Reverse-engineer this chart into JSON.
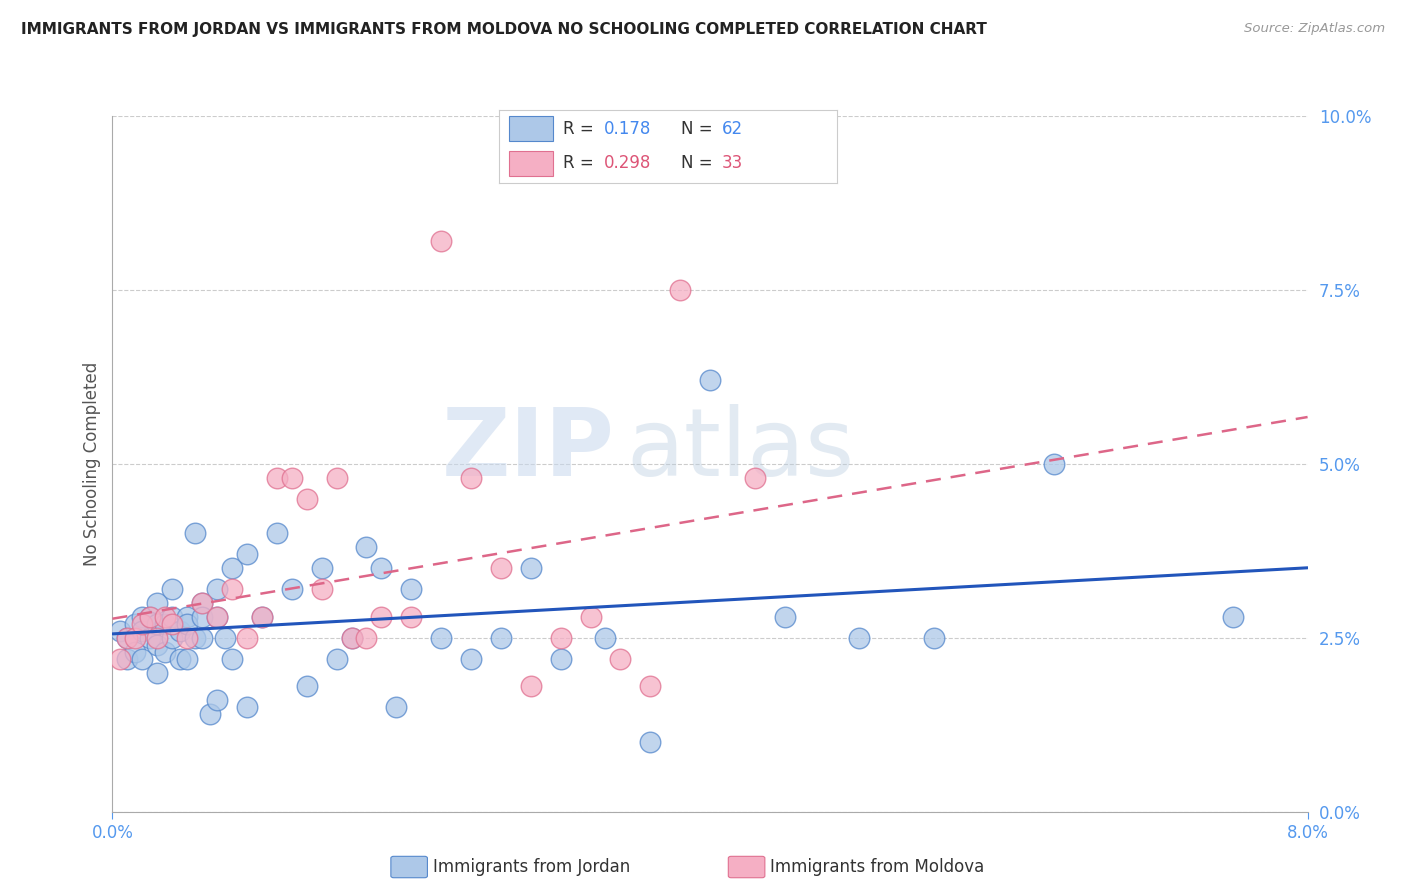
{
  "title": "IMMIGRANTS FROM JORDAN VS IMMIGRANTS FROM MOLDOVA NO SCHOOLING COMPLETED CORRELATION CHART",
  "source": "Source: ZipAtlas.com",
  "ylabel": "No Schooling Completed",
  "xlim": [
    0.0,
    0.08
  ],
  "ylim": [
    0.0,
    0.1
  ],
  "xticks_show": [
    0.0,
    0.08
  ],
  "yticks": [
    0.0,
    0.025,
    0.05,
    0.075,
    0.1
  ],
  "jordan_color": "#adc8e8",
  "moldova_color": "#f5afc4",
  "jordan_edge_color": "#5588cc",
  "moldova_edge_color": "#e07090",
  "trend_jordan_color": "#2255bb",
  "trend_moldova_color": "#dd6688",
  "R_jordan": 0.178,
  "N_jordan": 62,
  "R_moldova": 0.298,
  "N_moldova": 33,
  "watermark_zip": "ZIP",
  "watermark_atlas": "atlas",
  "background_color": "#ffffff",
  "jordan_x": [
    0.0005,
    0.001,
    0.001,
    0.0015,
    0.0015,
    0.002,
    0.002,
    0.002,
    0.0025,
    0.0025,
    0.003,
    0.003,
    0.003,
    0.003,
    0.0035,
    0.0035,
    0.004,
    0.004,
    0.004,
    0.0045,
    0.0045,
    0.005,
    0.005,
    0.005,
    0.0055,
    0.0055,
    0.006,
    0.006,
    0.006,
    0.0065,
    0.007,
    0.007,
    0.007,
    0.0075,
    0.008,
    0.008,
    0.009,
    0.009,
    0.01,
    0.011,
    0.012,
    0.013,
    0.014,
    0.015,
    0.016,
    0.017,
    0.018,
    0.019,
    0.02,
    0.022,
    0.024,
    0.026,
    0.028,
    0.03,
    0.033,
    0.036,
    0.04,
    0.045,
    0.05,
    0.055,
    0.063,
    0.075
  ],
  "jordan_y": [
    0.026,
    0.025,
    0.022,
    0.027,
    0.023,
    0.028,
    0.026,
    0.022,
    0.028,
    0.025,
    0.03,
    0.027,
    0.024,
    0.02,
    0.027,
    0.023,
    0.028,
    0.025,
    0.032,
    0.026,
    0.022,
    0.028,
    0.027,
    0.022,
    0.025,
    0.04,
    0.03,
    0.028,
    0.025,
    0.014,
    0.032,
    0.028,
    0.016,
    0.025,
    0.022,
    0.035,
    0.037,
    0.015,
    0.028,
    0.04,
    0.032,
    0.018,
    0.035,
    0.022,
    0.025,
    0.038,
    0.035,
    0.015,
    0.032,
    0.025,
    0.022,
    0.025,
    0.035,
    0.022,
    0.025,
    0.01,
    0.062,
    0.028,
    0.025,
    0.025,
    0.05,
    0.028
  ],
  "moldova_x": [
    0.0005,
    0.001,
    0.0015,
    0.002,
    0.0025,
    0.003,
    0.0035,
    0.004,
    0.005,
    0.006,
    0.007,
    0.008,
    0.009,
    0.01,
    0.011,
    0.012,
    0.013,
    0.014,
    0.015,
    0.016,
    0.017,
    0.018,
    0.02,
    0.022,
    0.024,
    0.026,
    0.028,
    0.03,
    0.032,
    0.034,
    0.036,
    0.038,
    0.043
  ],
  "moldova_y": [
    0.022,
    0.025,
    0.025,
    0.027,
    0.028,
    0.025,
    0.028,
    0.027,
    0.025,
    0.03,
    0.028,
    0.032,
    0.025,
    0.028,
    0.048,
    0.048,
    0.045,
    0.032,
    0.048,
    0.025,
    0.025,
    0.028,
    0.028,
    0.082,
    0.048,
    0.035,
    0.018,
    0.025,
    0.028,
    0.022,
    0.018,
    0.075,
    0.048
  ],
  "legend_jordan_label": "Immigrants from Jordan",
  "legend_moldova_label": "Immigrants from Moldova"
}
